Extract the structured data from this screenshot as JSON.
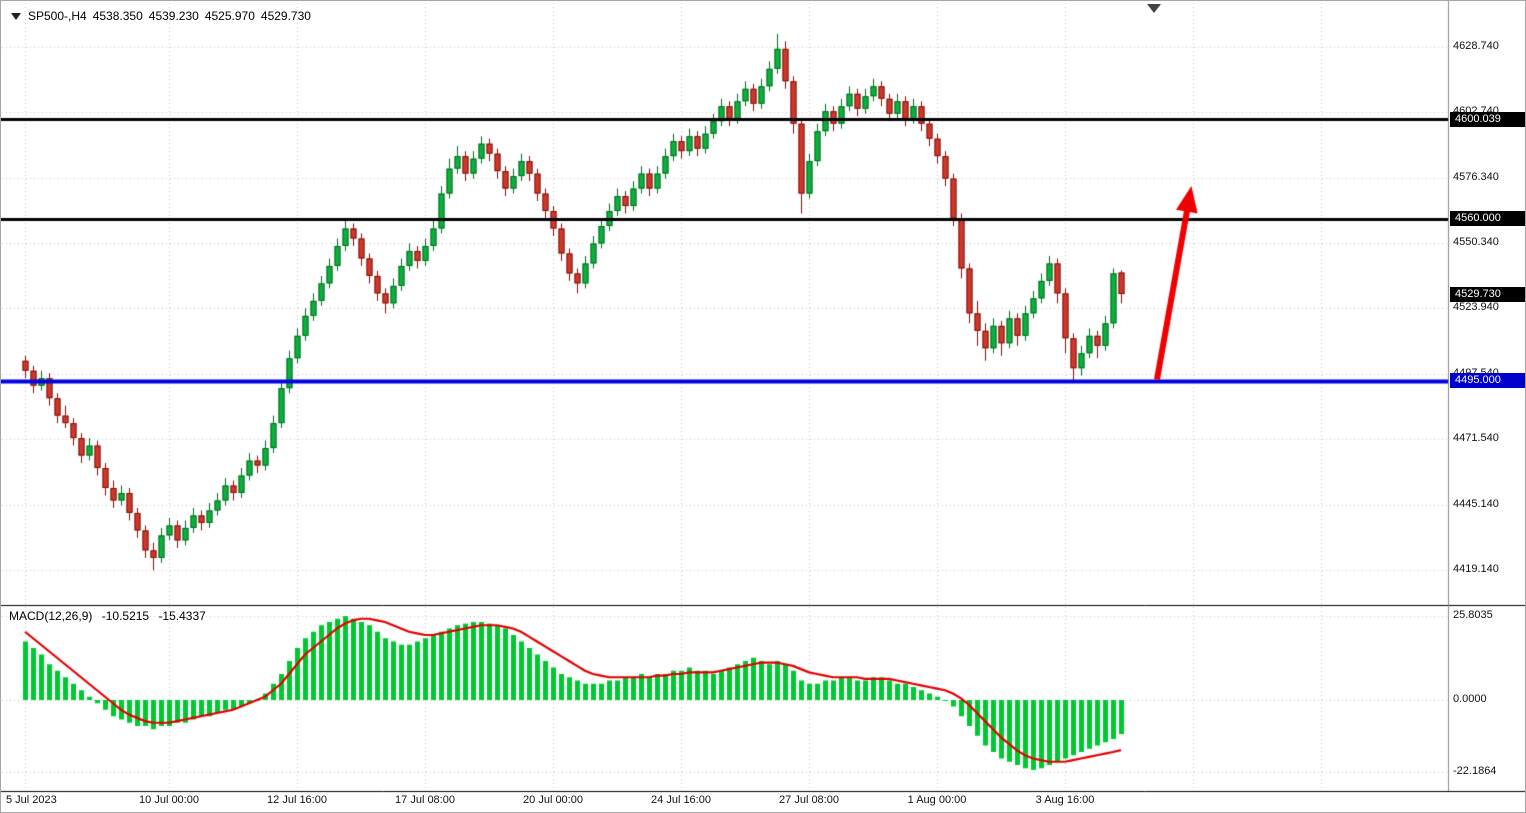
{
  "header": {
    "symbol_period": "SP500-,H4",
    "open": "4538.350",
    "high": "4539.230",
    "low": "4525.970",
    "close": "4529.730"
  },
  "chart_data": [
    {
      "type": "candlestick",
      "symbol": "SP500-",
      "timeframe": "H4",
      "x_tick_labels": [
        "5 Jul 2023",
        "10 Jul 00:00",
        "12 Jul 16:00",
        "17 Jul 08:00",
        "20 Jul 00:00",
        "24 Jul 16:00",
        "27 Jul 08:00",
        "1 Aug 00:00",
        "3 Aug 16:00"
      ],
      "x_tick_bars": [
        0,
        18,
        34,
        50,
        66,
        82,
        98,
        114,
        130
      ],
      "x_grid_extra": [
        146,
        162
      ],
      "y_ticks": [
        "4628.740",
        "4602.740",
        "4576.340",
        "4550.340",
        "4523.940",
        "4497.540",
        "4471.540",
        "4445.140",
        "4419.140"
      ],
      "y_range": [
        4406.7,
        4647.2
      ],
      "bull_color": "#0cb13e",
      "bull_border": "#046d22",
      "bear_color": "#d0382b",
      "bear_border": "#7e150d",
      "hlines": [
        {
          "price": 4600.039,
          "label": "4600.039",
          "color": "#000000",
          "width": 3
        },
        {
          "price": 4560.0,
          "label": "4560.000",
          "color": "#000000",
          "width": 3
        },
        {
          "price": 4495.0,
          "label": "4495.000",
          "color": "#0000e0",
          "width": 4
        }
      ],
      "last_price": {
        "value": 4529.73,
        "label": "4529.730"
      },
      "arrow": {
        "from_bar": 141.5,
        "from_price": 4495.5,
        "to_bar": 145.8,
        "to_price": 4573,
        "color": "#f00000",
        "width": 6,
        "head_length": 26,
        "head_width": 11
      },
      "candles": [
        [
          4503,
          4505,
          4496,
          4499
        ],
        [
          4499,
          4501,
          4490,
          4493
        ],
        [
          4493,
          4499,
          4491,
          4496
        ],
        [
          4496,
          4498,
          4485,
          4488
        ],
        [
          4488,
          4490,
          4478,
          4481
        ],
        [
          4481,
          4485,
          4476,
          4478
        ],
        [
          4478,
          4480,
          4469,
          4472
        ],
        [
          4472,
          4474,
          4462,
          4465
        ],
        [
          4465,
          4472,
          4463,
          4469
        ],
        [
          4469,
          4471,
          4457,
          4460
        ],
        [
          4460,
          4462,
          4449,
          4452
        ],
        [
          4452,
          4455,
          4444,
          4447
        ],
        [
          4447,
          4453,
          4445,
          4450
        ],
        [
          4450,
          4452,
          4439,
          4442
        ],
        [
          4442,
          4444,
          4432,
          4435
        ],
        [
          4435,
          4437,
          4424,
          4427
        ],
        [
          4427,
          4430,
          4419,
          4424
        ],
        [
          4424,
          4436,
          4422,
          4433
        ],
        [
          4433,
          4440,
          4431,
          4437
        ],
        [
          4437,
          4439,
          4428,
          4431
        ],
        [
          4431,
          4439,
          4429,
          4436
        ],
        [
          4436,
          4444,
          4434,
          4441
        ],
        [
          4441,
          4443,
          4435,
          4438
        ],
        [
          4438,
          4446,
          4436,
          4443
        ],
        [
          4443,
          4450,
          4441,
          4447
        ],
        [
          4447,
          4456,
          4445,
          4453
        ],
        [
          4453,
          4455,
          4447,
          4450
        ],
        [
          4450,
          4460,
          4448,
          4457
        ],
        [
          4457,
          4466,
          4455,
          4463
        ],
        [
          4463,
          4465,
          4458,
          4461
        ],
        [
          4461,
          4471,
          4459,
          4468
        ],
        [
          4468,
          4481,
          4466,
          4478
        ],
        [
          4478,
          4495,
          4476,
          4492
        ],
        [
          4492,
          4507,
          4490,
          4504
        ],
        [
          4504,
          4516,
          4502,
          4513
        ],
        [
          4513,
          4524,
          4511,
          4521
        ],
        [
          4521,
          4530,
          4519,
          4527
        ],
        [
          4527,
          4537,
          4525,
          4534
        ],
        [
          4534,
          4544,
          4532,
          4541
        ],
        [
          4541,
          4552,
          4539,
          4549
        ],
        [
          4549,
          4559,
          4547,
          4556
        ],
        [
          4556,
          4558,
          4549,
          4552
        ],
        [
          4552,
          4554,
          4541,
          4544
        ],
        [
          4544,
          4546,
          4534,
          4537
        ],
        [
          4537,
          4539,
          4527,
          4530
        ],
        [
          4530,
          4532,
          4522,
          4526
        ],
        [
          4526,
          4536,
          4524,
          4533
        ],
        [
          4533,
          4544,
          4531,
          4541
        ],
        [
          4541,
          4550,
          4539,
          4547
        ],
        [
          4547,
          4549,
          4540,
          4543
        ],
        [
          4543,
          4552,
          4541,
          4549
        ],
        [
          4549,
          4559,
          4547,
          4556
        ],
        [
          4556,
          4573,
          4554,
          4570
        ],
        [
          4570,
          4584,
          4568,
          4580
        ],
        [
          4580,
          4589,
          4578,
          4585
        ],
        [
          4585,
          4587,
          4575,
          4578
        ],
        [
          4578,
          4587,
          4576,
          4584
        ],
        [
          4584,
          4593,
          4582,
          4590
        ],
        [
          4590,
          4592,
          4583,
          4586
        ],
        [
          4586,
          4588,
          4576,
          4579
        ],
        [
          4579,
          4581,
          4569,
          4572
        ],
        [
          4572,
          4580,
          4570,
          4577
        ],
        [
          4577,
          4586,
          4575,
          4583
        ],
        [
          4583,
          4585,
          4575,
          4578
        ],
        [
          4578,
          4580,
          4567,
          4570
        ],
        [
          4570,
          4572,
          4560,
          4563
        ],
        [
          4563,
          4565,
          4553,
          4556
        ],
        [
          4556,
          4558,
          4543,
          4546
        ],
        [
          4546,
          4548,
          4535,
          4538
        ],
        [
          4538,
          4540,
          4530,
          4534
        ],
        [
          4534,
          4545,
          4532,
          4542
        ],
        [
          4542,
          4553,
          4540,
          4550
        ],
        [
          4550,
          4560,
          4548,
          4557
        ],
        [
          4557,
          4566,
          4555,
          4563
        ],
        [
          4563,
          4572,
          4561,
          4569
        ],
        [
          4569,
          4571,
          4562,
          4565
        ],
        [
          4565,
          4575,
          4563,
          4572
        ],
        [
          4572,
          4581,
          4570,
          4578
        ],
        [
          4578,
          4580,
          4569,
          4572
        ],
        [
          4572,
          4581,
          4570,
          4578
        ],
        [
          4578,
          4588,
          4576,
          4585
        ],
        [
          4585,
          4594,
          4583,
          4591
        ],
        [
          4591,
          4593,
          4584,
          4587
        ],
        [
          4587,
          4596,
          4585,
          4593
        ],
        [
          4593,
          4595,
          4585,
          4588
        ],
        [
          4588,
          4597,
          4586,
          4594
        ],
        [
          4594,
          4602,
          4592,
          4599
        ],
        [
          4599,
          4608,
          4597,
          4605
        ],
        [
          4605,
          4607,
          4597,
          4600
        ],
        [
          4600,
          4610,
          4598,
          4607
        ],
        [
          4607,
          4615,
          4605,
          4612
        ],
        [
          4612,
          4614,
          4603,
          4606
        ],
        [
          4606,
          4616,
          4604,
          4613
        ],
        [
          4613,
          4623,
          4611,
          4620
        ],
        [
          4620,
          4634,
          4618,
          4628
        ],
        [
          4628,
          4631,
          4612,
          4615
        ],
        [
          4615,
          4617,
          4594,
          4598
        ],
        [
          4598,
          4600,
          4562,
          4570
        ],
        [
          4570,
          4586,
          4568,
          4583
        ],
        [
          4583,
          4598,
          4581,
          4595
        ],
        [
          4595,
          4606,
          4593,
          4603
        ],
        [
          4603,
          4605,
          4595,
          4598
        ],
        [
          4598,
          4608,
          4596,
          4605
        ],
        [
          4605,
          4613,
          4603,
          4610
        ],
        [
          4610,
          4612,
          4601,
          4604
        ],
        [
          4604,
          4612,
          4602,
          4609
        ],
        [
          4609,
          4616,
          4607,
          4613
        ],
        [
          4613,
          4615,
          4605,
          4608
        ],
        [
          4608,
          4610,
          4599,
          4602
        ],
        [
          4602,
          4610,
          4600,
          4607
        ],
        [
          4607,
          4609,
          4597,
          4600
        ],
        [
          4600,
          4608,
          4598,
          4605
        ],
        [
          4605,
          4607,
          4595,
          4598
        ],
        [
          4598,
          4600,
          4589,
          4592
        ],
        [
          4592,
          4594,
          4582,
          4585
        ],
        [
          4585,
          4587,
          4573,
          4576
        ],
        [
          4576,
          4578,
          4557,
          4560
        ],
        [
          4560,
          4562,
          4536,
          4540
        ],
        [
          4540,
          4542,
          4518,
          4522
        ],
        [
          4522,
          4527,
          4509,
          4515
        ],
        [
          4515,
          4518,
          4503,
          4508
        ],
        [
          4508,
          4520,
          4506,
          4517
        ],
        [
          4517,
          4519,
          4505,
          4510
        ],
        [
          4510,
          4523,
          4508,
          4520
        ],
        [
          4520,
          4522,
          4509,
          4513
        ],
        [
          4513,
          4525,
          4511,
          4522
        ],
        [
          4522,
          4531,
          4520,
          4528
        ],
        [
          4528,
          4538,
          4526,
          4535
        ],
        [
          4535,
          4545,
          4533,
          4542
        ],
        [
          4542,
          4544,
          4526,
          4530
        ],
        [
          4530,
          4532,
          4506,
          4512
        ],
        [
          4512,
          4514,
          4494,
          4500
        ],
        [
          4500,
          4509,
          4497,
          4506
        ],
        [
          4506,
          4516,
          4504,
          4513
        ],
        [
          4513,
          4515,
          4504,
          4509
        ],
        [
          4509,
          4521,
          4507,
          4518
        ],
        [
          4518,
          4540,
          4516,
          4538
        ],
        [
          4538.35,
          4539.23,
          4525.97,
          4529.73
        ]
      ]
    },
    {
      "type": "bar",
      "title": "MACD(12,26,9)",
      "macd_value": "-10.5215",
      "signal_value": "-15.4337",
      "y_ticks": [
        "25.8035",
        "0.0000",
        "-22.1864"
      ],
      "histogram_color": "#00c832",
      "signal_color": "#e10000",
      "values": [
        18,
        16,
        14,
        11,
        9,
        7,
        5,
        3,
        1,
        -1,
        -3,
        -5,
        -6,
        -7,
        -8,
        -8,
        -9,
        -8,
        -8,
        -7,
        -7,
        -6,
        -5,
        -5,
        -4,
        -3,
        -3,
        -2,
        -1,
        0,
        2,
        5,
        8,
        12,
        16,
        19,
        21,
        23,
        24,
        25,
        25.8,
        25,
        24,
        23,
        21,
        19,
        18,
        17,
        17,
        18,
        19,
        20,
        21,
        22,
        23,
        23.5,
        24,
        24,
        23.5,
        23,
        22,
        20,
        18,
        16,
        14,
        12,
        10,
        8,
        7,
        6,
        5,
        5,
        5,
        6,
        6,
        7,
        7,
        8,
        7,
        8,
        8,
        9,
        9,
        10,
        9,
        9,
        8,
        9,
        10,
        11,
        12,
        13,
        12,
        11,
        12,
        11,
        9,
        6,
        5,
        5,
        6,
        6,
        7,
        7,
        6,
        6,
        7,
        7,
        6,
        5,
        5,
        4,
        3,
        2,
        1,
        0,
        -2,
        -5,
        -8,
        -11,
        -14,
        -16,
        -18,
        -19,
        -20,
        -21,
        -21.5,
        -21,
        -20,
        -19,
        -18,
        -17,
        -16,
        -15,
        -14,
        -13,
        -12,
        -10.5
      ],
      "signal": [
        21,
        19,
        17,
        15,
        13,
        11,
        9,
        7,
        5,
        3,
        1,
        -1,
        -3,
        -4.5,
        -5.5,
        -6.5,
        -7,
        -7,
        -7,
        -6.5,
        -6,
        -5.5,
        -5,
        -4.5,
        -4,
        -3.5,
        -3,
        -2,
        -1,
        0,
        1,
        3,
        5,
        8,
        11,
        14,
        16,
        18,
        20,
        22,
        23.5,
        24.5,
        25,
        25,
        24.5,
        24,
        23,
        22,
        21,
        20.5,
        20,
        20,
        20.5,
        21,
        21.5,
        22,
        22.5,
        23,
        23,
        23,
        22.5,
        22,
        21,
        19.5,
        18,
        16.5,
        15,
        13.5,
        12,
        10.5,
        9,
        8,
        7.5,
        7,
        7,
        7,
        7,
        7,
        7,
        7.5,
        7.5,
        8,
        8,
        8.5,
        8.5,
        8.5,
        8.5,
        9,
        9.5,
        10,
        10.5,
        11,
        11.5,
        11.5,
        11.5,
        11,
        10.5,
        9.5,
        8.5,
        8,
        7.5,
        7,
        7,
        7,
        7,
        6.5,
        6.5,
        6.5,
        6.5,
        6,
        5.5,
        5,
        4.5,
        4,
        3.5,
        3,
        2,
        0.5,
        -1.5,
        -4,
        -6.5,
        -9,
        -11.5,
        -13.5,
        -15.5,
        -17,
        -18,
        -18.5,
        -19,
        -19,
        -19,
        -18.5,
        -18,
        -17.5,
        -17,
        -16.5,
        -16,
        -15.4
      ]
    }
  ]
}
